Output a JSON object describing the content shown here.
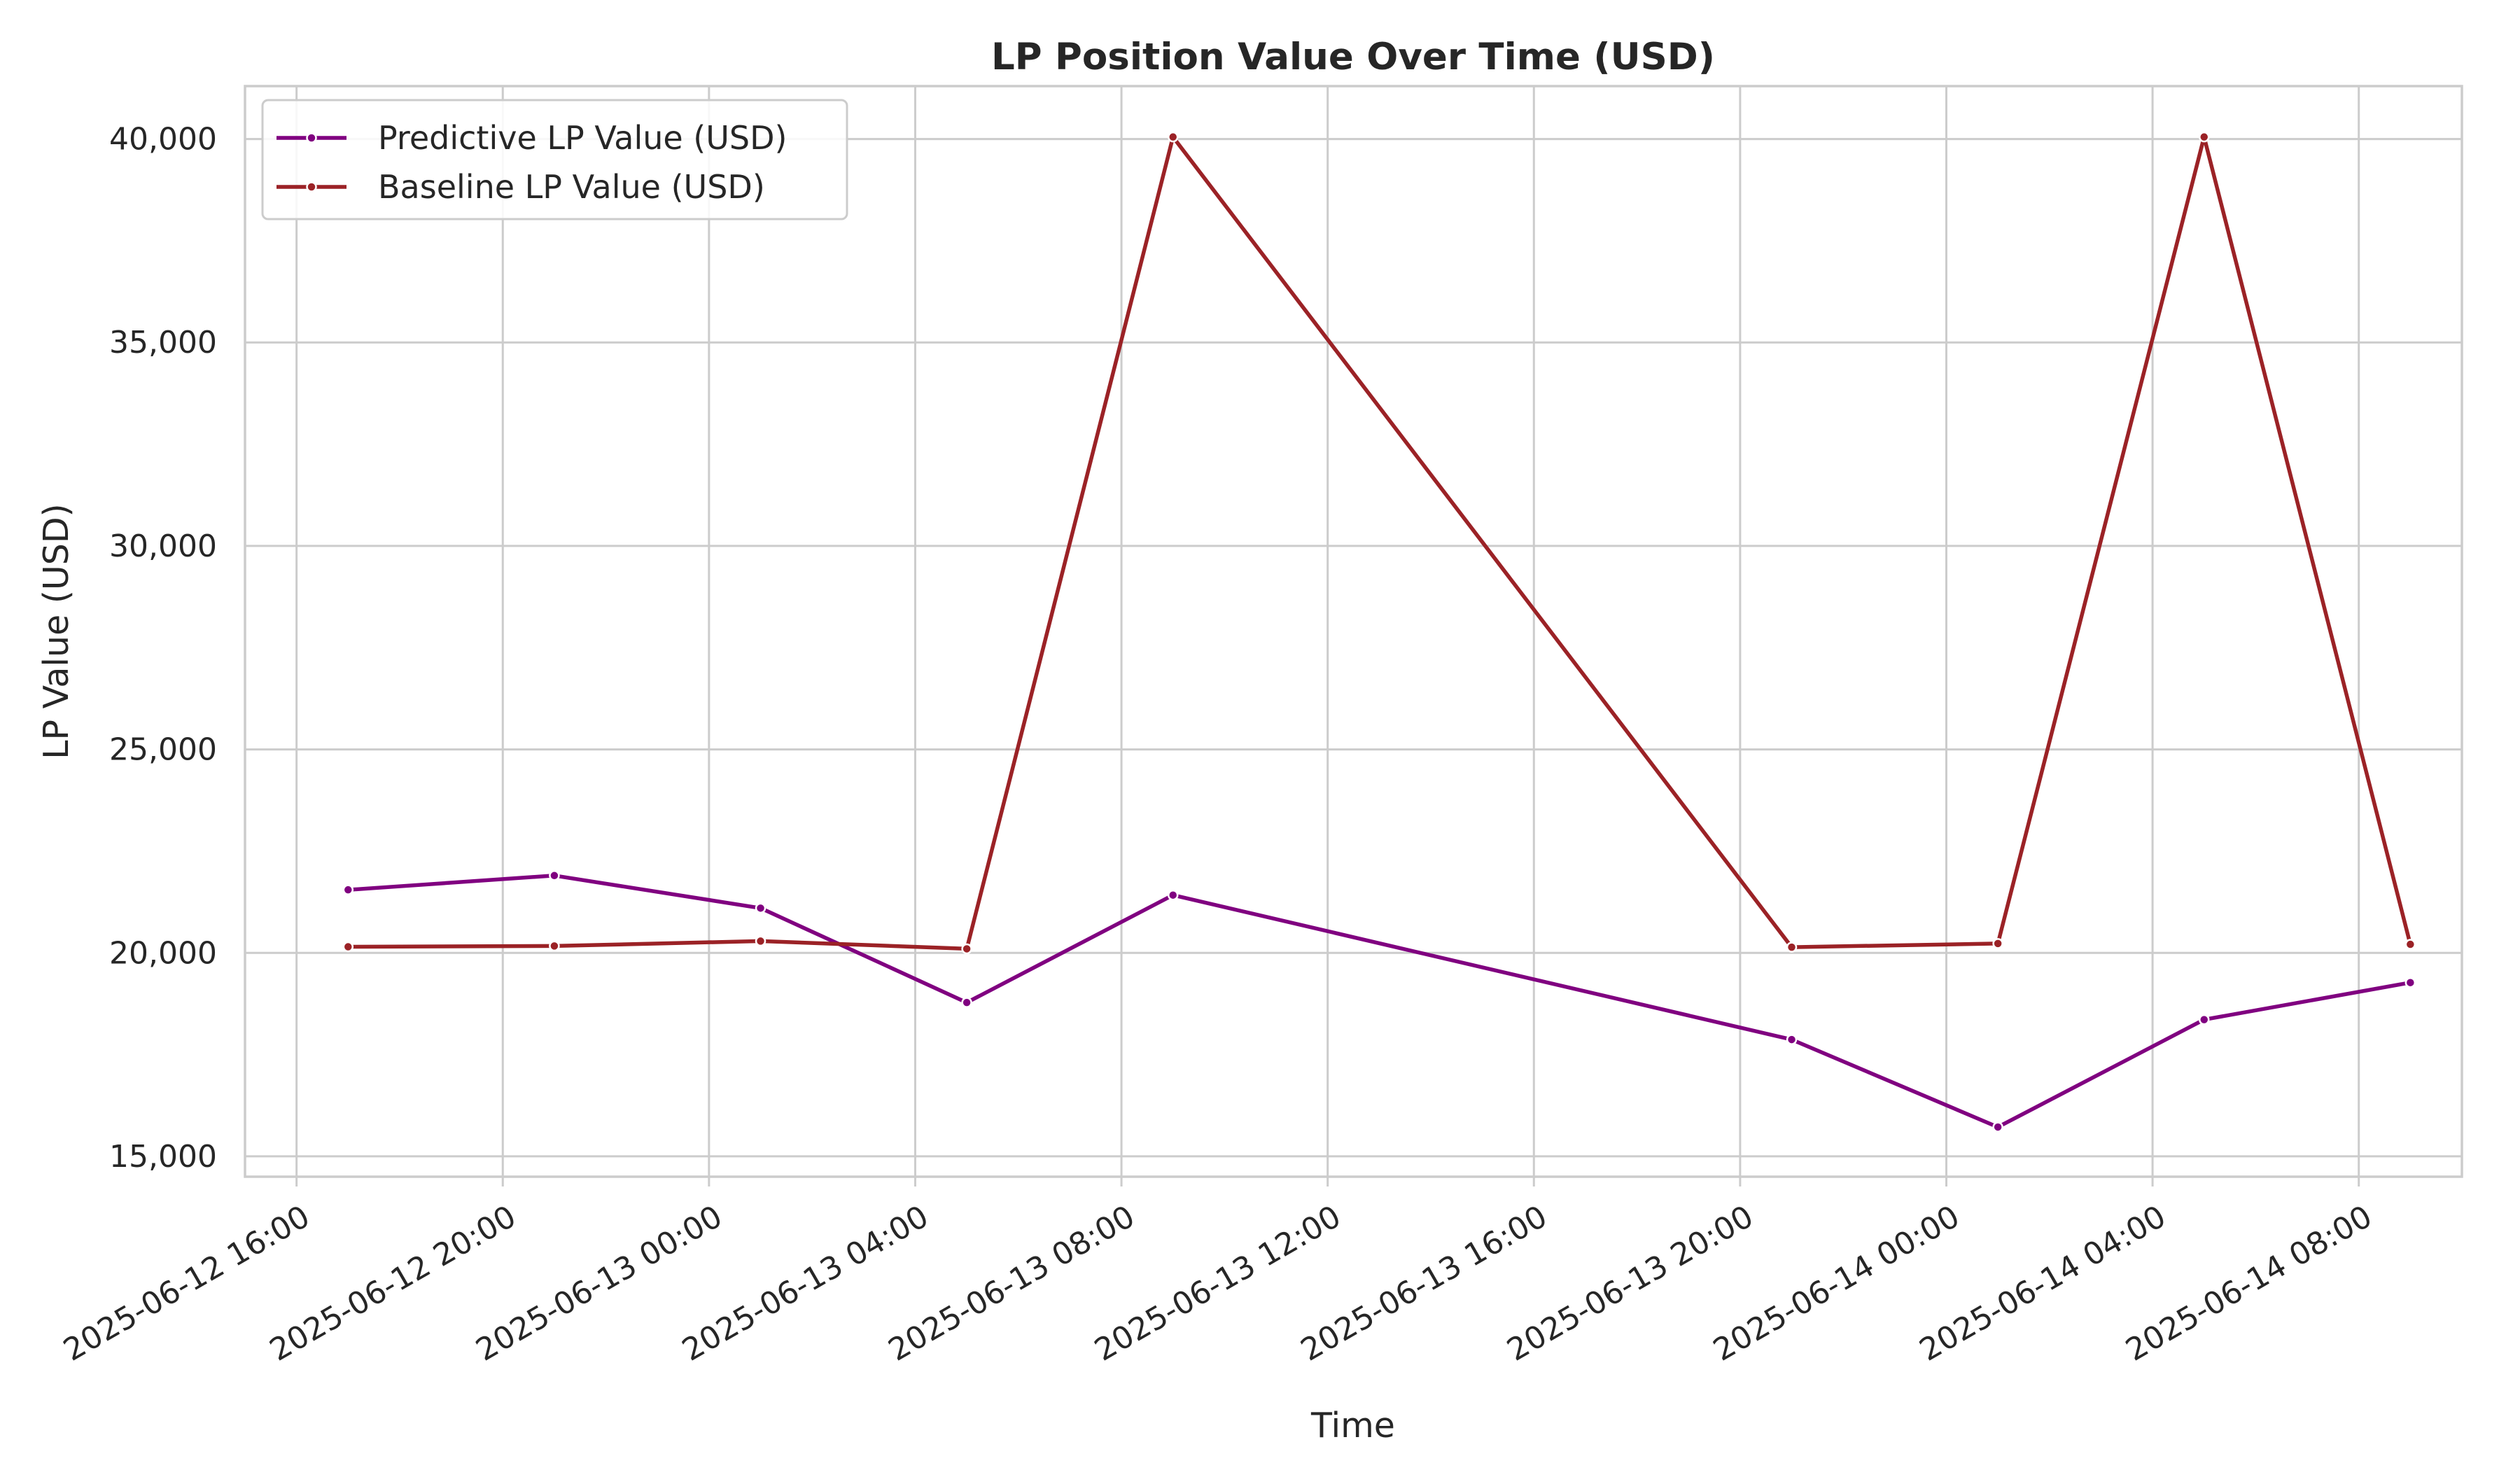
{
  "chart_data": {
    "type": "line",
    "title": "LP Position Value Over Time (USD)",
    "xlabel": "Time",
    "ylabel": "LP Value (USD)",
    "x_ticks": [
      "2025-06-12 16:00",
      "2025-06-12 20:00",
      "2025-06-13 00:00",
      "2025-06-13 04:00",
      "2025-06-13 08:00",
      "2025-06-13 12:00",
      "2025-06-13 16:00",
      "2025-06-13 20:00",
      "2025-06-14 00:00",
      "2025-06-14 04:00",
      "2025-06-14 08:00"
    ],
    "y_ticks": [
      "15,000",
      "20,000",
      "25,000",
      "30,000",
      "35,000",
      "40,000"
    ],
    "ylim": [
      14500,
      41300
    ],
    "xlim": [
      "2025-06-12 15:00",
      "2025-06-14 10:00"
    ],
    "grid": true,
    "legend_position": "top-left",
    "x": [
      "2025-06-12 17:00",
      "2025-06-12 21:00",
      "2025-06-13 01:00",
      "2025-06-13 05:00",
      "2025-06-13 09:00",
      "2025-06-13 21:00",
      "2025-06-14 01:00",
      "2025-06-14 05:00",
      "2025-06-14 09:00"
    ],
    "series": [
      {
        "name": "Predictive LP Value (USD)",
        "color": "#800080",
        "values": [
          21550,
          21900,
          21100,
          18780,
          21420,
          17870,
          15720,
          18360,
          19270
        ]
      },
      {
        "name": "Baseline LP Value (USD)",
        "color": "#9b2226",
        "values": [
          20150,
          20170,
          20290,
          20100,
          40050,
          20140,
          20230,
          40050,
          20210
        ]
      }
    ]
  }
}
